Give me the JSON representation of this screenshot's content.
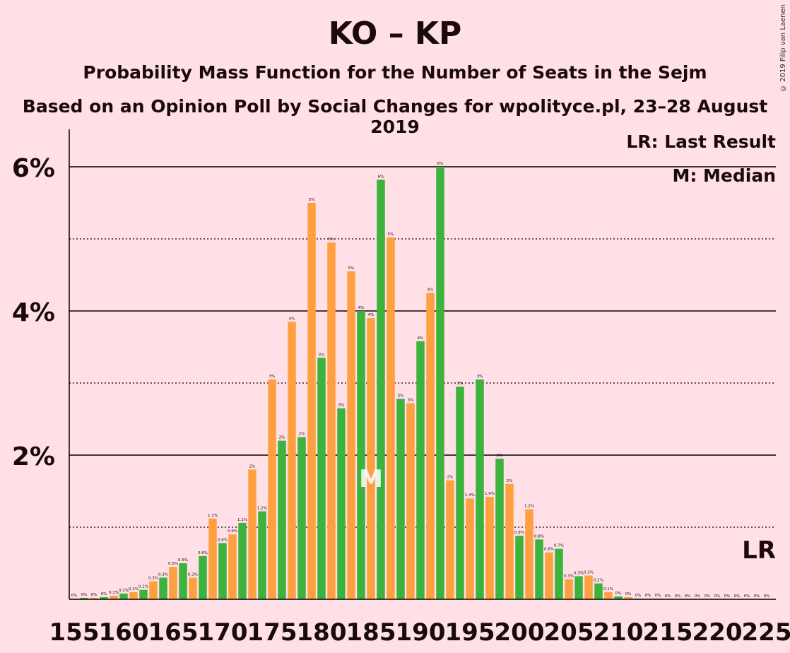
{
  "header": {
    "title": "KO – KP",
    "subtitle1": "Probability Mass Function for the Number of Seats in the Sejm",
    "subtitle2": "Based on an Opinion Poll by Social Changes for wpolityce.pl, 23–28 August 2019",
    "copyright": "© 2019 Filip van Laenen"
  },
  "colors": {
    "background": "#ffe0e6",
    "green": "#3cb33c",
    "orange": "#ffa040",
    "text": "#1a0a0a"
  },
  "chart_data": {
    "type": "bar",
    "x": [
      155,
      156,
      157,
      158,
      159,
      160,
      161,
      162,
      163,
      164,
      165,
      166,
      167,
      168,
      169,
      170,
      171,
      172,
      173,
      174,
      175,
      176,
      177,
      178,
      179,
      180,
      181,
      182,
      183,
      184,
      185,
      186,
      187,
      188,
      189,
      190,
      191,
      192,
      193,
      194,
      195,
      196,
      197,
      198,
      199,
      200,
      201,
      202,
      203,
      204,
      205,
      206,
      207,
      208,
      209,
      210,
      211,
      212,
      213,
      214,
      215,
      216,
      217,
      218,
      219,
      220,
      221,
      222,
      223,
      224,
      225
    ],
    "values": [
      0.01,
      0.02,
      0.02,
      0.03,
      0.05,
      0.08,
      0.1,
      0.13,
      0.25,
      0.3,
      0.45,
      0.5,
      0.3,
      0.6,
      1.12,
      0.78,
      0.9,
      1.06,
      1.8,
      1.22,
      3.05,
      2.2,
      3.85,
      2.25,
      5.5,
      3.35,
      4.95,
      2.65,
      4.55,
      4.0,
      3.9,
      5.82,
      5.02,
      2.78,
      2.72,
      3.58,
      4.25,
      6.0,
      1.65,
      2.95,
      1.4,
      3.05,
      1.42,
      1.95,
      1.6,
      0.88,
      1.25,
      0.83,
      0.65,
      0.7,
      0.28,
      0.32,
      0.33,
      0.22,
      0.1,
      0.04,
      0.03,
      0.01,
      0.01,
      0.01,
      0.0,
      0.0,
      0.0,
      0.0,
      0.0,
      0.0,
      0.0,
      0.0,
      0.0,
      0.0,
      0.0
    ],
    "labels": [
      "0%",
      "0%",
      "0%",
      "0%",
      "0.1%",
      "0.1%",
      "0.1%",
      "0.1%",
      "0.3%",
      "0.3%",
      "0.5%",
      "0.5%",
      "0.3%",
      "0.6%",
      "1.1%",
      "0.8%",
      "0.9%",
      "1.1%",
      "2%",
      "1.2%",
      "3%",
      "2%",
      "4%",
      "2%",
      "5%",
      "3%",
      "5%",
      "3%",
      "5%",
      "4%",
      "4%",
      "6%",
      "5%",
      "3%",
      "3%",
      "4%",
      "4%",
      "6%",
      "2%",
      "3%",
      "1.4%",
      "3%",
      "1.4%",
      "2%",
      "2%",
      "0.9%",
      "1.2%",
      "0.8%",
      "0.6%",
      "0.7%",
      "0.3%",
      "0.3%",
      "0.3%",
      "0.2%",
      "0.1%",
      "0%",
      "0%",
      "0%",
      "0%",
      "0%",
      "0%",
      "0%",
      "0%",
      "0%",
      "0%",
      "0%",
      "0%",
      "0%",
      "0%",
      "0%",
      "0%"
    ],
    "color_pattern": [
      "orange",
      "green"
    ],
    "xticks": [
      155,
      160,
      165,
      170,
      175,
      180,
      185,
      190,
      195,
      200,
      205,
      210,
      215,
      220,
      225
    ],
    "yticks": [
      {
        "value": 2,
        "label": "2%"
      },
      {
        "value": 4,
        "label": "4%"
      },
      {
        "value": 6,
        "label": "6%"
      }
    ],
    "minor_grid": [
      1,
      3,
      5
    ],
    "ylim": [
      0,
      6.5
    ],
    "median": {
      "x": 185,
      "label": "M"
    },
    "last_result": {
      "label": "LR"
    },
    "legend": [
      "LR: Last Result",
      "M: Median"
    ]
  }
}
